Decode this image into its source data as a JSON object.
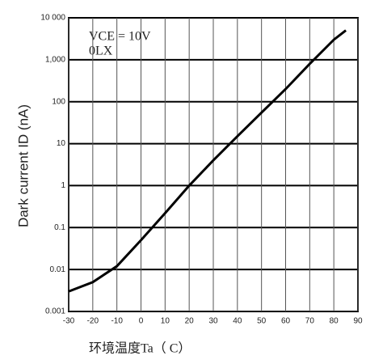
{
  "chart_data": {
    "type": "line",
    "xlabel": "环境温度Ta（  C）",
    "ylabel": "Dark current  ID (nA)",
    "annotations": [
      "VCE = 10V",
      "0LX"
    ],
    "x": [
      -30,
      -20,
      -10,
      0,
      10,
      20,
      30,
      40,
      50,
      60,
      70,
      80,
      85
    ],
    "series": [
      {
        "color": "#000000",
        "values": [
          0.003,
          0.005,
          0.012,
          0.05,
          0.22,
          1,
          4,
          15,
          55,
          200,
          800,
          3000,
          5000
        ]
      }
    ],
    "xlim": [
      -30,
      90
    ],
    "xticks": [
      -30,
      -20,
      -10,
      0,
      10,
      20,
      30,
      40,
      50,
      60,
      70,
      80,
      90
    ],
    "ylim": [
      0.001,
      10000
    ],
    "yticks": [
      {
        "value": 0.001,
        "label": "0.001"
      },
      0.01,
      0.1,
      1,
      10,
      100,
      {
        "value": 1000,
        "label": "1,000"
      },
      {
        "value": 10000,
        "label": "10 000"
      }
    ],
    "log_y": true,
    "grid": true
  }
}
